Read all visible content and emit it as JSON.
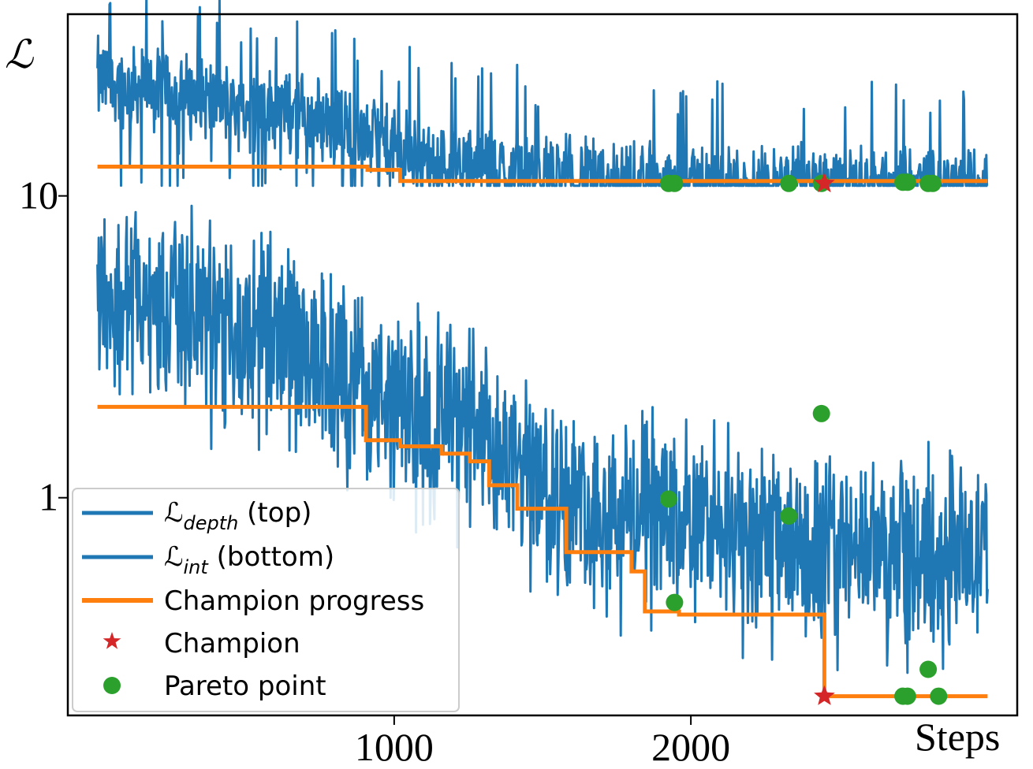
{
  "chart_data": {
    "type": "line",
    "ylabel": "ℒ",
    "xlabel": "Steps",
    "y_scale": "log",
    "xlim": [
      -100,
      3100
    ],
    "ylim": [
      0.19,
      40
    ],
    "x_ticks": [
      1000,
      2000
    ],
    "y_ticks": [
      {
        "value": 10,
        "label": "10"
      },
      {
        "value": 1,
        "label": "1"
      }
    ],
    "grid": false,
    "legend_position": "lower-left",
    "series": [
      {
        "name": "ℒdepth (top)",
        "name_main": "ℒ",
        "name_sub": "depth",
        "name_rest": " (top)",
        "type": "line",
        "color": "#1f77b4",
        "x": [
          0,
          100,
          200,
          300,
          400,
          500,
          600,
          700,
          800,
          900,
          1000,
          1100,
          1200,
          1300,
          1400,
          1500,
          1600,
          1700,
          1800,
          1900,
          2000,
          2200,
          2400,
          2600,
          2800,
          3000
        ],
        "y": [
          25,
          24,
          23,
          22,
          21,
          20,
          20,
          19,
          18,
          16,
          15,
          14,
          13.5,
          13,
          12.5,
          12,
          11.8,
          11.6,
          11.4,
          11.3,
          11.2,
          11.1,
          11.0,
          11.0,
          11.0,
          11.0
        ]
      },
      {
        "name": "ℒint (bottom)",
        "name_main": "ℒ",
        "name_sub": "int",
        "name_rest": " (bottom)",
        "type": "line",
        "color": "#1f77b4",
        "x": [
          0,
          100,
          200,
          300,
          400,
          500,
          600,
          700,
          800,
          900,
          1000,
          1100,
          1200,
          1300,
          1400,
          1500,
          1600,
          1700,
          1800,
          1900,
          2000,
          2200,
          2400,
          2600,
          2800,
          3000
        ],
        "y": [
          5,
          4.8,
          4.5,
          4.3,
          4.0,
          3.8,
          3.5,
          3.2,
          2.9,
          2.6,
          2.3,
          2.0,
          1.8,
          1.6,
          1.4,
          1.2,
          1.1,
          1.0,
          0.95,
          0.9,
          0.85,
          0.8,
          0.75,
          0.72,
          0.7,
          0.7
        ]
      },
      {
        "name": "Champion progress",
        "type": "step",
        "color": "#ff7f0e",
        "segments": [
          {
            "x": [
              0,
              910,
              910,
              1020,
              1020,
              3000
            ],
            "y": [
              12.5,
              12.5,
              12.2,
              12.2,
              11.2,
              11.2
            ]
          },
          {
            "x": [
              0,
              905,
              905,
              1020,
              1020,
              1160,
              1160,
              1255,
              1255,
              1320,
              1320,
              1415,
              1415,
              1580,
              1580,
              1800,
              1800,
              1845,
              1845,
              1960,
              1960,
              2450,
              2450,
              3000
            ],
            "y": [
              2.0,
              2.0,
              1.55,
              1.55,
              1.48,
              1.48,
              1.4,
              1.4,
              1.32,
              1.32,
              1.1,
              1.1,
              0.92,
              0.92,
              0.66,
              0.66,
              0.57,
              0.57,
              0.42,
              0.42,
              0.41,
              0.41,
              0.22,
              0.22
            ]
          }
        ]
      },
      {
        "name": "Champion",
        "type": "scatter",
        "marker": "star",
        "color": "#d62728",
        "points": [
          {
            "x": 2450,
            "y": 11.0
          },
          {
            "x": 2450,
            "y": 0.22
          }
        ]
      },
      {
        "name": "Pareto point",
        "type": "scatter",
        "marker": "circle",
        "color": "#2ca02c",
        "points": [
          {
            "x": 1925,
            "y": 11.0
          },
          {
            "x": 1945,
            "y": 11.0
          },
          {
            "x": 2330,
            "y": 11.0
          },
          {
            "x": 2440,
            "y": 11.0
          },
          {
            "x": 2715,
            "y": 11.1
          },
          {
            "x": 2730,
            "y": 11.1
          },
          {
            "x": 2800,
            "y": 11.0
          },
          {
            "x": 2815,
            "y": 11.0
          },
          {
            "x": 1925,
            "y": 0.99
          },
          {
            "x": 1945,
            "y": 0.45
          },
          {
            "x": 2330,
            "y": 0.87
          },
          {
            "x": 2440,
            "y": 1.9
          },
          {
            "x": 2715,
            "y": 0.22
          },
          {
            "x": 2730,
            "y": 0.22
          },
          {
            "x": 2800,
            "y": 0.27
          },
          {
            "x": 2835,
            "y": 0.22
          }
        ]
      }
    ]
  }
}
